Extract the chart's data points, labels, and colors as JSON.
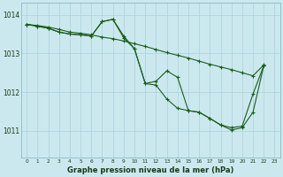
{
  "title": "Graphe pression niveau de la mer (hPa)",
  "background_color": "#cce8ef",
  "grid_color": "#aad0da",
  "line_color": "#1a5e1a",
  "x_labels": [
    "0",
    "1",
    "2",
    "3",
    "4",
    "5",
    "6",
    "7",
    "8",
    "9",
    "10",
    "11",
    "12",
    "13",
    "14",
    "15",
    "16",
    "17",
    "18",
    "19",
    "20",
    "21",
    "22",
    "23"
  ],
  "y_ticks": [
    1011,
    1012,
    1013,
    1014
  ],
  "ylim": [
    1010.3,
    1014.3
  ],
  "series1_x": [
    0,
    1,
    2,
    3,
    4,
    5,
    6,
    7,
    8,
    9,
    10,
    11,
    12,
    13,
    14,
    15,
    16,
    17,
    18,
    19,
    20,
    21,
    22
  ],
  "series1_y": [
    1013.75,
    1013.72,
    1013.68,
    1013.62,
    1013.55,
    1013.52,
    1013.48,
    1013.42,
    1013.38,
    1013.32,
    1013.25,
    1013.18,
    1013.1,
    1013.02,
    1012.95,
    1012.88,
    1012.8,
    1012.72,
    1012.65,
    1012.58,
    1012.5,
    1012.42,
    1012.7
  ],
  "series2_x": [
    0,
    1,
    2,
    3,
    4,
    5,
    6,
    7,
    8,
    9,
    10,
    11,
    12,
    13,
    14,
    15,
    16,
    17,
    18,
    19,
    20,
    21,
    22
  ],
  "series2_y": [
    1013.75,
    1013.7,
    1013.65,
    1013.55,
    1013.5,
    1013.48,
    1013.45,
    1013.82,
    1013.88,
    1013.45,
    1013.12,
    1012.22,
    1012.28,
    1012.55,
    1012.38,
    1011.52,
    1011.48,
    1011.32,
    1011.15,
    1011.08,
    1011.12,
    1011.95,
    1012.68
  ],
  "series3_x": [
    0,
    1,
    2,
    3,
    4,
    5,
    6,
    7,
    8,
    9,
    10,
    11,
    12,
    13,
    14,
    15,
    16,
    17,
    18,
    19,
    20,
    21,
    22
  ],
  "series3_y": [
    1013.75,
    1013.7,
    1013.65,
    1013.55,
    1013.5,
    1013.48,
    1013.45,
    1013.82,
    1013.88,
    1013.4,
    1013.12,
    1012.22,
    1012.18,
    1011.82,
    1011.58,
    1011.52,
    1011.48,
    1011.32,
    1011.15,
    1011.02,
    1011.08,
    1011.48,
    1012.68
  ]
}
